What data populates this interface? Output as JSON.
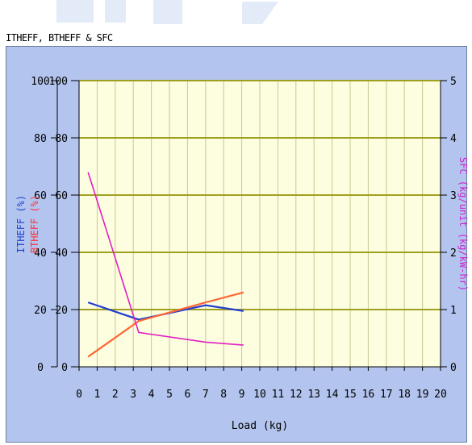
{
  "title": "ITHEFF, BTHEFF & SFC",
  "chart_data": {
    "type": "line",
    "xlabel": "Load (kg)",
    "ylabel_left_outer": "ITHEFF (%)",
    "ylabel_left_inner": "BTHEFF (%)",
    "ylabel_right": "SFC (kg/unit (kg/kW-hr)",
    "xlim": [
      0,
      20
    ],
    "ylim_left": [
      0,
      100
    ],
    "ylim_right": [
      0,
      5
    ],
    "x_ticks": [
      "0",
      "1",
      "2",
      "3",
      "4",
      "5",
      "6",
      "7",
      "8",
      "9",
      "10",
      "11",
      "12",
      "13",
      "14",
      "15",
      "16",
      "17",
      "18",
      "19",
      "20"
    ],
    "y_ticks_left": [
      "0",
      "20",
      "40",
      "60",
      "80",
      "100"
    ],
    "y_ticks_right": [
      "0",
      "1",
      "2",
      "3",
      "4",
      "5"
    ],
    "grid": true,
    "series": [
      {
        "name": "ITHEFF (%)",
        "color": "#2040d0",
        "axis": "left",
        "x": [
          0.5,
          3.3,
          7.0,
          9.1
        ],
        "y": [
          22.5,
          16.5,
          21.5,
          19.5
        ]
      },
      {
        "name": "BTHEFF (%)",
        "color": "#ff6633",
        "axis": "left",
        "x": [
          0.5,
          3.3,
          7.0,
          9.1
        ],
        "y": [
          3.5,
          16.0,
          22.5,
          26.0
        ]
      },
      {
        "name": "SFC (kg/unit (kg/kW-hr)",
        "color": "#e020c0",
        "axis": "right",
        "x": [
          0.5,
          3.3,
          7.0,
          9.1
        ],
        "y": [
          3.4,
          0.6,
          0.43,
          0.38
        ]
      }
    ]
  }
}
